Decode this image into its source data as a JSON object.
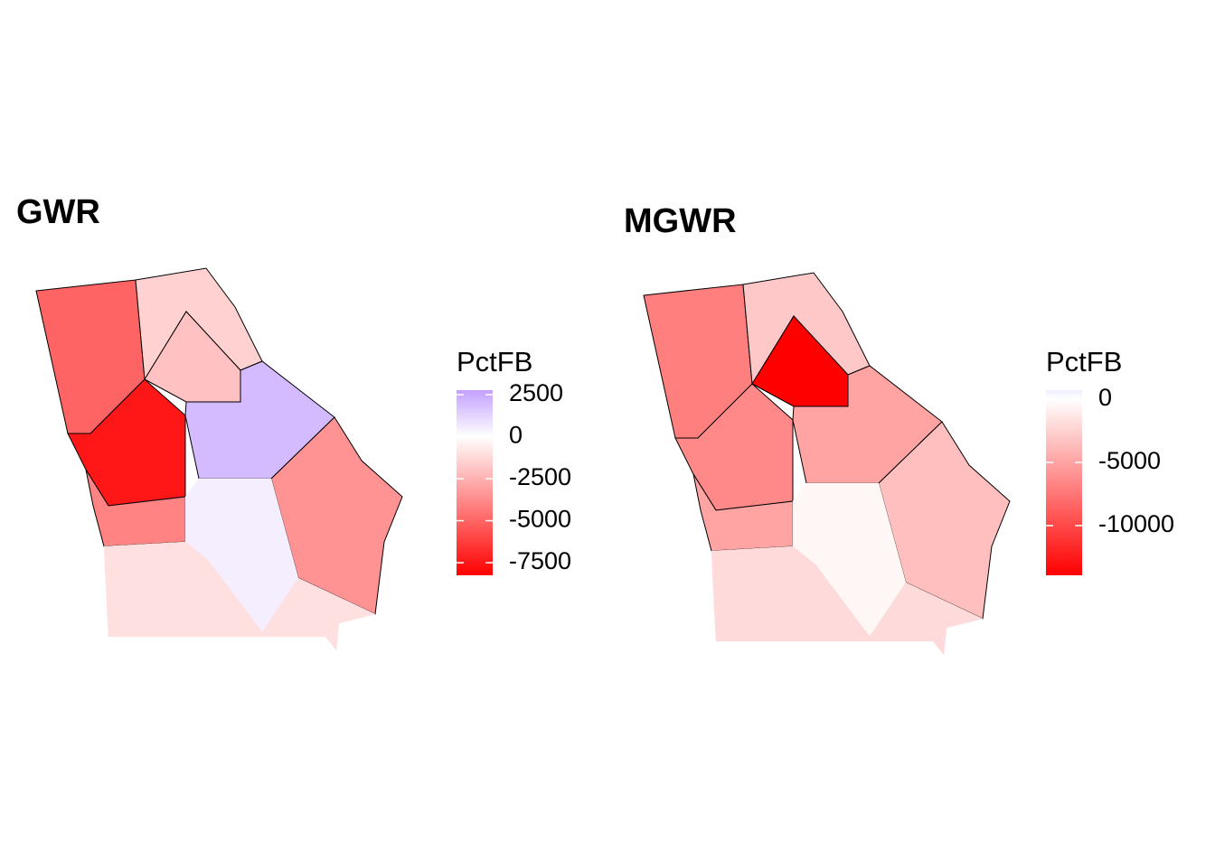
{
  "maps": [
    {
      "title": "GWR",
      "legend": {
        "title": "PctFB",
        "ticks": [
          2500,
          0,
          -2500,
          -5000,
          -7500
        ],
        "range": [
          -8250,
          2770
        ],
        "low_color": "#ff0000",
        "mid_color": "#ffffff",
        "high_color": "#c3a0ff"
      },
      "regions": [
        -5000,
        -7500,
        -4000,
        -1500,
        2000,
        -3500,
        500,
        -1000,
        -2000
      ]
    },
    {
      "title": "MGWR",
      "legend": {
        "title": "PctFB",
        "ticks": [
          0,
          -5000,
          -10000
        ],
        "range": [
          -13930,
          714
        ],
        "low_color": "#ff0000",
        "mid_color": "#ffffff",
        "high_color": "#eeeeff"
      },
      "regions": [
        -7000,
        -6500,
        -5000,
        -3000,
        -5000,
        -3500,
        -500,
        -2000,
        -14000
      ]
    }
  ]
}
